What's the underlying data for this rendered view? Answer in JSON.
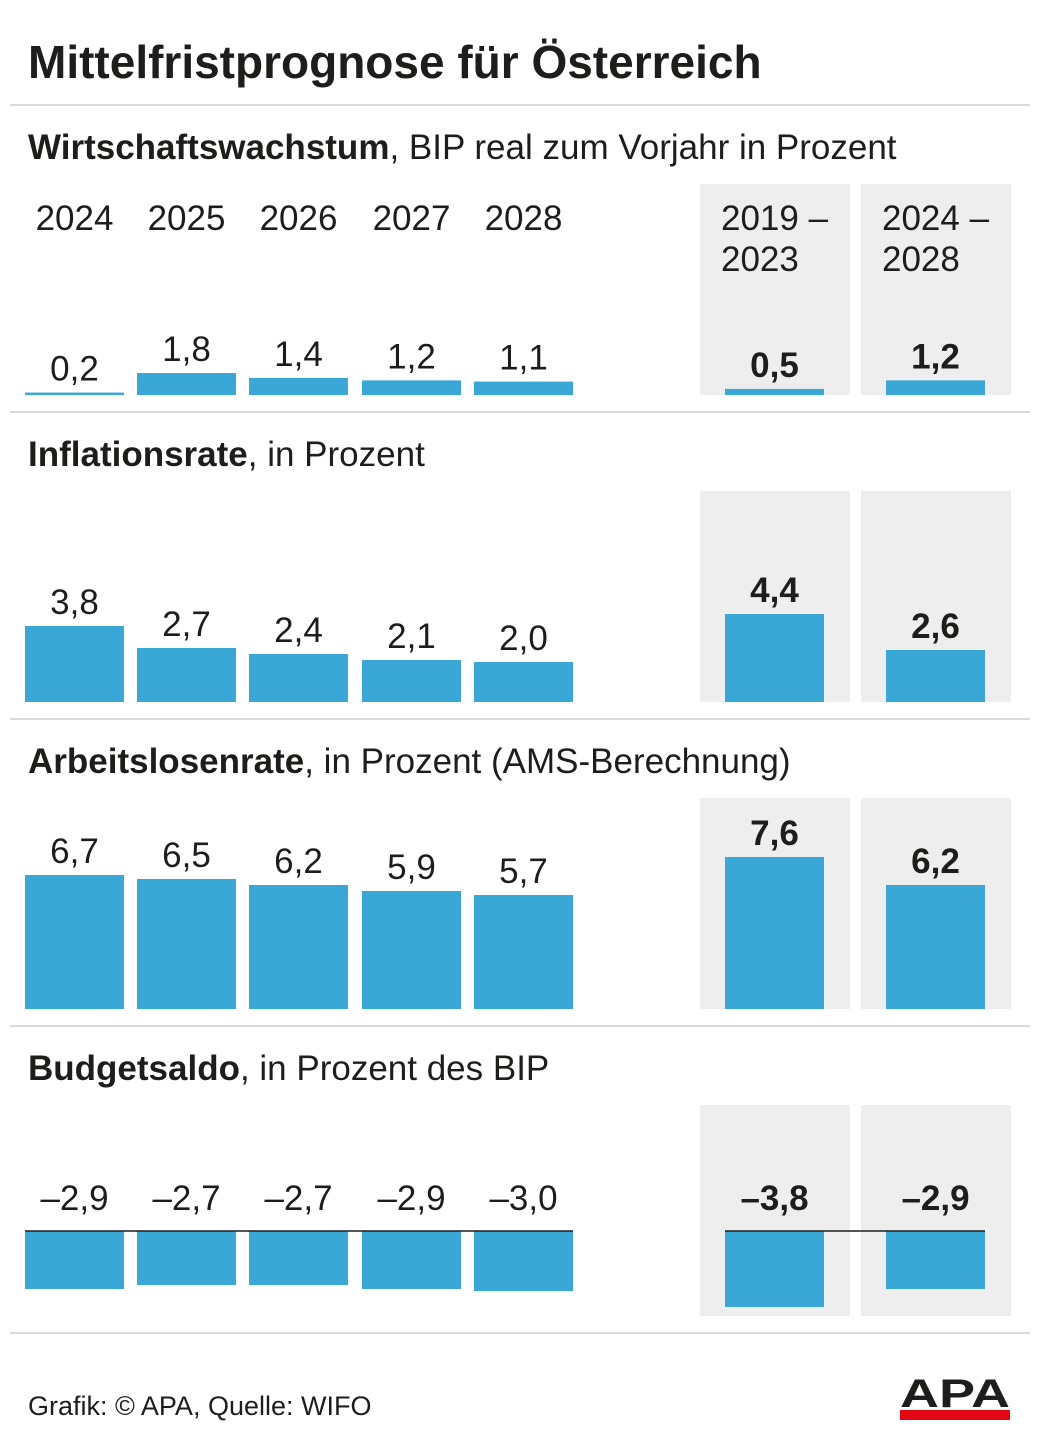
{
  "title": "Mittelfristprognose für Österreich",
  "colors": {
    "bar": "#3aa8d6",
    "panel": "#eeeeee",
    "text": "#1d1d1b",
    "divider": "#d9d9d9",
    "logo_bar": "#e30613"
  },
  "periods": {
    "years": [
      "2024",
      "2025",
      "2026",
      "2027",
      "2028"
    ],
    "averages": [
      {
        "line1": "2019 –",
        "line2": "2023"
      },
      {
        "line1": "2024 –",
        "line2": "2028"
      }
    ]
  },
  "sections": [
    {
      "heading_bold": "Wirtschaftswachstum",
      "heading_rest": ", BIP real zum Vorjahr in Prozent"
    },
    {
      "heading_bold": "Inflationsrate",
      "heading_rest": ", in Prozent"
    },
    {
      "heading_bold": "Arbeitslosenrate",
      "heading_rest": ", in Prozent (AMS-Berechnung)"
    },
    {
      "heading_bold": "Budgetsaldo",
      "heading_rest": ", in Prozent des BIP"
    }
  ],
  "chart_data": [
    {
      "type": "bar",
      "title": "Wirtschaftswachstum, BIP real zum Vorjahr in Prozent",
      "categories": [
        "2024",
        "2025",
        "2026",
        "2027",
        "2028",
        "2019–2023",
        "2024–2028"
      ],
      "values": [
        0.2,
        1.8,
        1.4,
        1.2,
        1.1,
        0.5,
        1.2
      ],
      "labels": [
        "0,2",
        "1,8",
        "1,4",
        "1,2",
        "1,1",
        "0,5",
        "1,2"
      ]
    },
    {
      "type": "bar",
      "title": "Inflationsrate, in Prozent",
      "categories": [
        "2024",
        "2025",
        "2026",
        "2027",
        "2028",
        "2019–2023",
        "2024–2028"
      ],
      "values": [
        3.8,
        2.7,
        2.4,
        2.1,
        2.0,
        4.4,
        2.6
      ],
      "labels": [
        "3,8",
        "2,7",
        "2,4",
        "2,1",
        "2,0",
        "4,4",
        "2,6"
      ]
    },
    {
      "type": "bar",
      "title": "Arbeitslosenrate, in Prozent (AMS-Berechnung)",
      "categories": [
        "2024",
        "2025",
        "2026",
        "2027",
        "2028",
        "2019–2023",
        "2024–2028"
      ],
      "values": [
        6.7,
        6.5,
        6.2,
        5.9,
        5.7,
        7.6,
        6.2
      ],
      "labels": [
        "6,7",
        "6,5",
        "6,2",
        "5,9",
        "5,7",
        "7,6",
        "6,2"
      ]
    },
    {
      "type": "bar",
      "title": "Budgetsaldo, in Prozent des BIP",
      "categories": [
        "2024",
        "2025",
        "2026",
        "2027",
        "2028",
        "2019–2023",
        "2024–2028"
      ],
      "values": [
        -2.9,
        -2.7,
        -2.7,
        -2.9,
        -3.0,
        -3.8,
        -2.9
      ],
      "labels": [
        "–2,9",
        "–2,7",
        "–2,7",
        "–2,9",
        "–3,0",
        "–3,8",
        "–2,9"
      ]
    }
  ],
  "footer": {
    "source": "Grafik: © APA, Quelle: WIFO",
    "logo_text": "APA"
  }
}
